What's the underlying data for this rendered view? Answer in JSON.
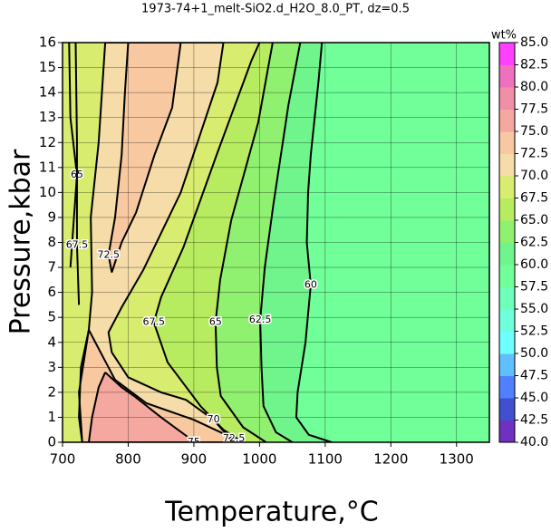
{
  "chart_data": {
    "type": "contour",
    "title": "1973-74+1_melt-SiO2.d_H2O_8.0_PT, dz=0.5",
    "xlabel": "Temperature,°C",
    "ylabel": "Pressure,kbar",
    "xlim": [
      700,
      1350
    ],
    "xticks": [
      700,
      800,
      900,
      1000,
      1100,
      1200,
      1300
    ],
    "ylim": [
      0,
      16
    ],
    "yticks": [
      0,
      1,
      2,
      3,
      4,
      5,
      6,
      7,
      8,
      9,
      10,
      11,
      12,
      13,
      14,
      15,
      16
    ],
    "grid": true,
    "colorbar": {
      "label": "wt%",
      "lim": [
        40,
        85
      ],
      "ticks": [
        {
          "value": 40,
          "label": "40.0"
        },
        {
          "value": 42.5,
          "label": "42.5"
        },
        {
          "value": 45,
          "label": "45.0"
        },
        {
          "value": 47.5,
          "label": "47.5"
        },
        {
          "value": 50,
          "label": "50.0"
        },
        {
          "value": 52.5,
          "label": "52.5"
        },
        {
          "value": 55,
          "label": "55.0"
        },
        {
          "value": 57.5,
          "label": "57.5"
        },
        {
          "value": 60,
          "label": "60.0"
        },
        {
          "value": 62.5,
          "label": "62.5"
        },
        {
          "value": 65,
          "label": "65.0"
        },
        {
          "value": 67.5,
          "label": "67.5"
        },
        {
          "value": 70,
          "label": "70.0"
        },
        {
          "value": 72.5,
          "label": "72.5"
        },
        {
          "value": 75,
          "label": "75.0"
        },
        {
          "value": 77.5,
          "label": "77.5"
        },
        {
          "value": 80,
          "label": "80.0"
        },
        {
          "value": 82.5,
          "label": "82.5"
        },
        {
          "value": 85,
          "label": "85.0"
        }
      ],
      "colors": [
        "#7030c0",
        "#4050d0",
        "#5080ff",
        "#60c0ff",
        "#70ffff",
        "#70ffdd",
        "#70ffbb",
        "#70ff99",
        "#70f58c",
        "#90f070",
        "#b8ec60",
        "#d8ec70",
        "#f5dca8",
        "#f8c8a0",
        "#f4a8a0",
        "#f090a8",
        "#f070c0",
        "#ff40ff"
      ]
    },
    "contours": [
      {
        "level": 60,
        "lines": [
          {
            "x": [
              1095,
              1090,
              1078,
              1074,
              1072,
              1078,
              1070,
              1058,
              1056,
              1075,
              1110
            ],
            "y": [
              16,
              14.5,
              11.5,
              10,
              8,
              6.3,
              4,
              2,
              1,
              0.3,
              0
            ]
          }
        ]
      },
      {
        "level": 62.5,
        "lines": [
          {
            "x": [
              1062,
              1044,
              1021,
              1008,
              1001,
              1003,
              1006,
              1025,
              1050
            ],
            "y": [
              16,
              13.5,
              9.5,
              7,
              4.9,
              3,
              1.45,
              0.4,
              0
            ]
          }
        ]
      },
      {
        "level": 65,
        "lines": [
          {
            "x": [
              1020,
              998,
              957,
              940,
              933,
              935,
              941,
              975,
              1010
            ],
            "y": [
              16,
              12.8,
              8.9,
              6.5,
              4.8,
              3,
              1.85,
              0.6,
              0
            ]
          },
          {
            "x": [
              710,
              712,
              722,
              712
            ],
            "y": [
              16,
              13,
              10.7,
              7
            ]
          }
        ]
      },
      {
        "level": 67.5,
        "lines": [
          {
            "x": [
              1000,
              988,
              936,
              884,
              850,
              839,
              860,
              910,
              945,
              975
            ],
            "y": [
              16,
              15.3,
              11.6,
              7.8,
              5.8,
              4.8,
              3.2,
              1.45,
              0.5,
              0
            ]
          },
          {
            "x": [
              720,
              722,
              722,
              725
            ],
            "y": [
              16,
              12,
              7.9,
              5.5
            ]
          }
        ]
      },
      {
        "level": 70,
        "lines": [
          {
            "x": [
              945,
              936,
              880,
              823,
              790,
              770,
              775,
              800,
              850,
              888,
              930,
              960,
              730,
              725,
              728,
              740,
              745,
              743,
              755,
              765,
              945
            ],
            "y": [
              16,
              14.4,
              10,
              6.9,
              5.4,
              4.4,
              3.6,
              2.6,
              2.0,
              1.7,
              0.9,
              0,
              0,
              1,
              3,
              4.5,
              6,
              9,
              12,
              16,
              16
            ]
          }
        ]
      },
      {
        "level": 72.5,
        "lines": [
          {
            "x": [
              880,
              867,
              840,
              812,
              790,
              775,
              770,
              780,
              790,
              795,
              800,
              880
            ],
            "y": [
              16,
              13.4,
              11.5,
              9.2,
              8,
              6.8,
              7.5,
              9,
              11.5,
              14,
              16,
              16
            ]
          },
          {
            "x": [
              740,
              760,
              780,
              828,
              900,
              961,
              970,
              730,
              725,
              740
            ],
            "y": [
              4.5,
              3.5,
              2.5,
              1.56,
              0.9,
              0.15,
              0,
              0,
              2,
              4.5
            ]
          }
        ]
      },
      {
        "level": 75,
        "lines": [
          {
            "x": [
              765,
              790,
              809,
              850,
              894,
              900,
              740,
              745,
              755,
              765
            ],
            "y": [
              2.8,
              2.2,
              1.85,
              1.0,
              0.15,
              0,
              0,
              1,
              2.2,
              2.8
            ]
          }
        ]
      }
    ]
  }
}
